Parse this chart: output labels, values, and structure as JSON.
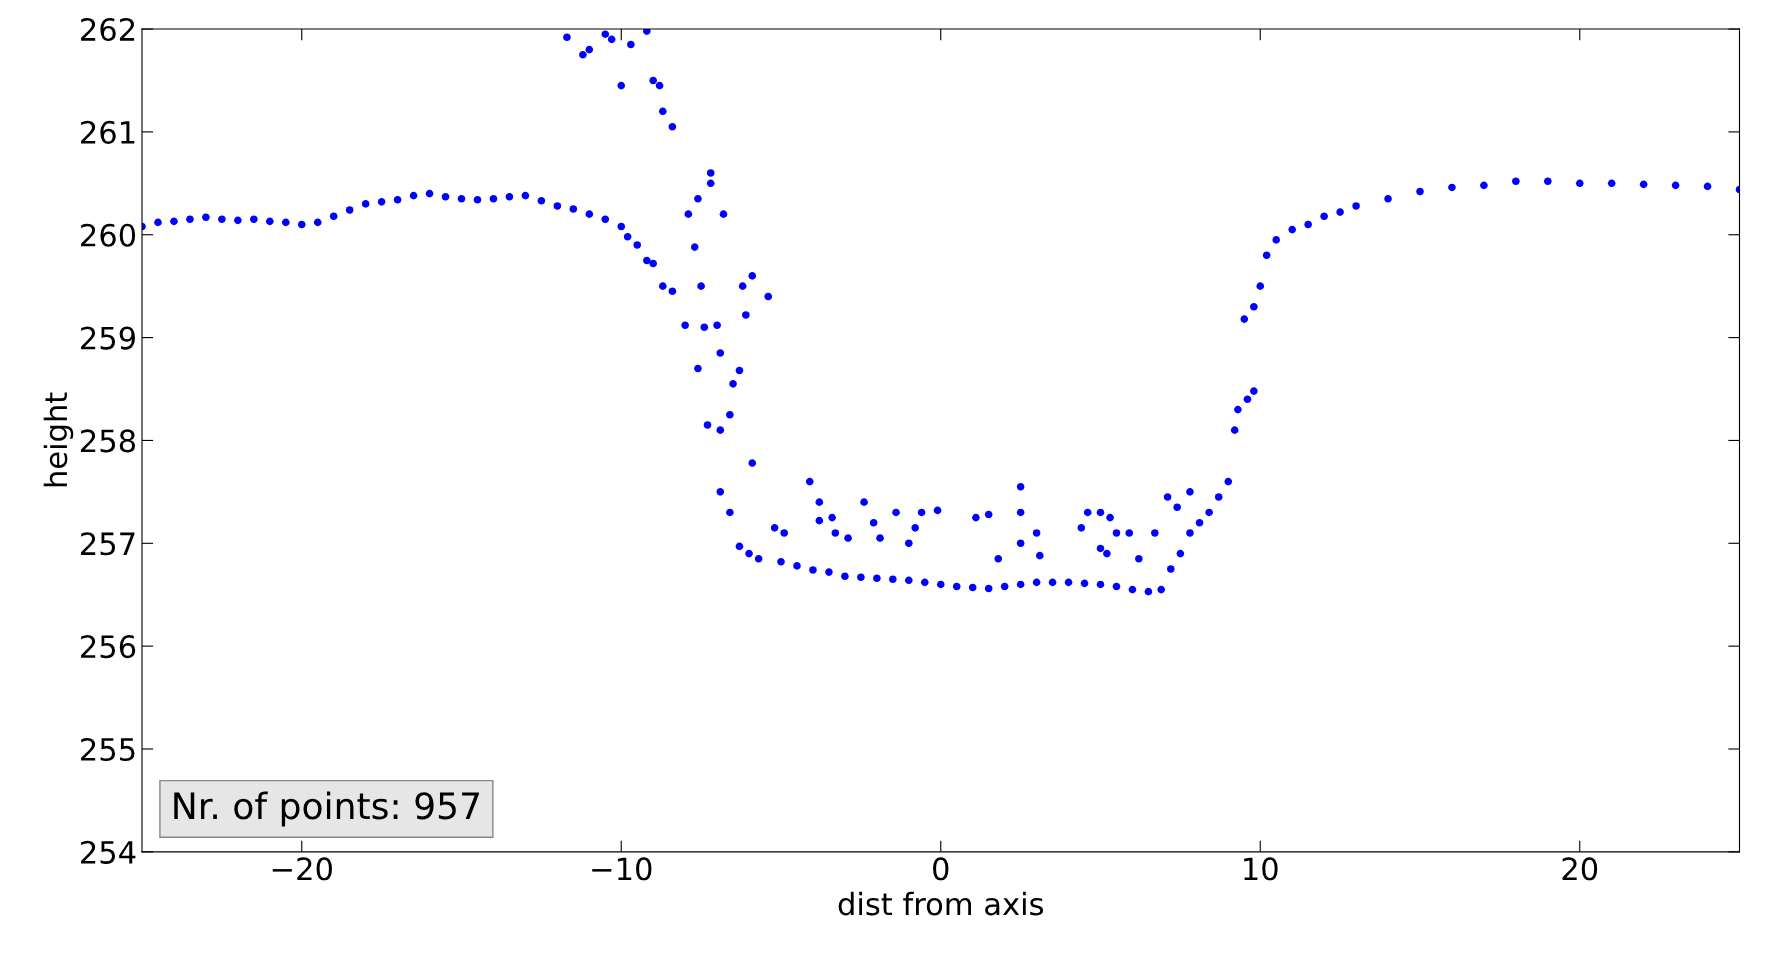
{
  "chart_data": {
    "type": "scatter",
    "xlabel": "dist from axis",
    "ylabel": "height",
    "marker": "circle",
    "grid": false,
    "xlim": [
      -25,
      25
    ],
    "ylim": [
      254,
      262
    ],
    "xticks": [
      {
        "value": -20,
        "label": "−20"
      },
      {
        "value": -10,
        "label": "−10"
      },
      0,
      10,
      20
    ],
    "yticks": [
      254,
      255,
      256,
      257,
      258,
      259,
      260,
      261,
      262
    ],
    "annotations": [
      "Nr. of points: 957"
    ],
    "series": [
      {
        "color": "#0000ff",
        "x": [
          -25,
          -24.5,
          -24,
          -23.5,
          -23,
          -22.5,
          -22,
          -21.5,
          -21,
          -20.5,
          -20,
          -19.5,
          -19,
          -18.5,
          -18,
          -17.5,
          -17,
          -16.5,
          -16,
          -15.5,
          -15,
          -14.5,
          -14,
          -13.5,
          -13,
          -12.5,
          -12,
          -11.5,
          -11,
          -10.5,
          -10,
          -9.8,
          -9.5,
          -9.2,
          -9,
          -8.7,
          -8.4,
          -8,
          -7.6,
          -7.3,
          -6.9,
          -6.6,
          -6.3,
          -6,
          -5.7,
          -5,
          -4.5,
          -4,
          -3.5,
          -3,
          -2.5,
          -2,
          -1.5,
          -1,
          -0.5,
          0,
          0.5,
          1,
          1.5,
          2,
          2.5,
          3,
          3.5,
          4,
          4.5,
          5,
          5.5,
          6,
          6.5,
          6.9,
          7.2,
          7.5,
          7.8,
          8.1,
          8.4,
          8.7,
          9,
          9.2,
          9.3,
          9.6,
          9.8,
          9.5,
          9.8,
          10,
          10.2,
          10.5,
          11,
          11.5,
          12,
          12.5,
          13,
          14,
          15,
          16,
          17,
          18,
          19,
          20,
          21,
          22,
          23,
          24,
          25,
          -11.7,
          -11.2,
          -11,
          -10.5,
          -10.3,
          -10,
          -9.7,
          -9.2,
          -9,
          -8.8,
          -8.7,
          -8.4,
          -7.9,
          -7.7,
          -7.6,
          -7.2,
          -7.2,
          -7.5,
          -6.8,
          -7.4,
          -7.0,
          -6.9,
          -6.5,
          -6.3,
          -6.6,
          -6.9,
          -5.9,
          -6.2,
          -6.1,
          -5.4,
          -5.9,
          -5.2,
          -4.9,
          -4.1,
          -3.8,
          -3.8,
          -3.4,
          -3.3,
          -2.9,
          -2.4,
          -2.1,
          -1.9,
          -1.4,
          -1.0,
          -0.8,
          -0.6,
          -0.1,
          1.1,
          1.5,
          1.8,
          2.5,
          2.5,
          2.5,
          3.0,
          3.1,
          4.4,
          4.6,
          5.0,
          5.3,
          5.5,
          5.0,
          5.2,
          5.9,
          6.2,
          6.7,
          7.1,
          7.4,
          7.8
        ],
        "values": [
          260.08,
          260.12,
          260.13,
          260.15,
          260.17,
          260.15,
          260.14,
          260.15,
          260.13,
          260.12,
          260.1,
          260.12,
          260.18,
          260.24,
          260.3,
          260.32,
          260.34,
          260.38,
          260.4,
          260.37,
          260.35,
          260.34,
          260.35,
          260.37,
          260.38,
          260.33,
          260.28,
          260.25,
          260.2,
          260.15,
          260.08,
          259.98,
          259.9,
          259.75,
          259.72,
          259.5,
          259.45,
          259.12,
          258.7,
          258.15,
          257.5,
          257.3,
          256.97,
          256.9,
          256.85,
          256.82,
          256.78,
          256.74,
          256.72,
          256.68,
          256.67,
          256.66,
          256.65,
          256.64,
          256.62,
          256.6,
          256.58,
          256.57,
          256.56,
          256.58,
          256.6,
          256.62,
          256.62,
          256.62,
          256.61,
          256.6,
          256.58,
          256.55,
          256.53,
          256.55,
          256.75,
          256.9,
          257.1,
          257.2,
          257.3,
          257.45,
          257.6,
          258.1,
          258.3,
          258.4,
          258.48,
          259.18,
          259.3,
          259.5,
          259.8,
          259.95,
          260.05,
          260.1,
          260.18,
          260.22,
          260.28,
          260.35,
          260.42,
          260.46,
          260.48,
          260.52,
          260.52,
          260.5,
          260.5,
          260.49,
          260.48,
          260.47,
          260.44,
          261.92,
          261.75,
          261.8,
          261.95,
          261.9,
          261.45,
          261.85,
          261.98,
          261.5,
          261.45,
          261.2,
          261.05,
          260.2,
          259.88,
          260.35,
          260.6,
          260.5,
          259.5,
          260.2,
          259.1,
          259.12,
          258.85,
          258.55,
          258.68,
          258.25,
          258.1,
          259.6,
          259.5,
          259.22,
          259.4,
          257.78,
          257.15,
          257.1,
          257.6,
          257.4,
          257.22,
          257.25,
          257.1,
          257.05,
          257.4,
          257.2,
          257.05,
          257.3,
          257.0,
          257.15,
          257.3,
          257.32,
          257.25,
          257.28,
          256.85,
          257.55,
          257.3,
          257.0,
          257.1,
          256.88,
          257.15,
          257.3,
          257.3,
          257.25,
          257.1,
          256.95,
          256.9,
          257.1,
          256.85,
          257.1,
          257.45,
          257.35,
          257.5
        ]
      }
    ]
  }
}
